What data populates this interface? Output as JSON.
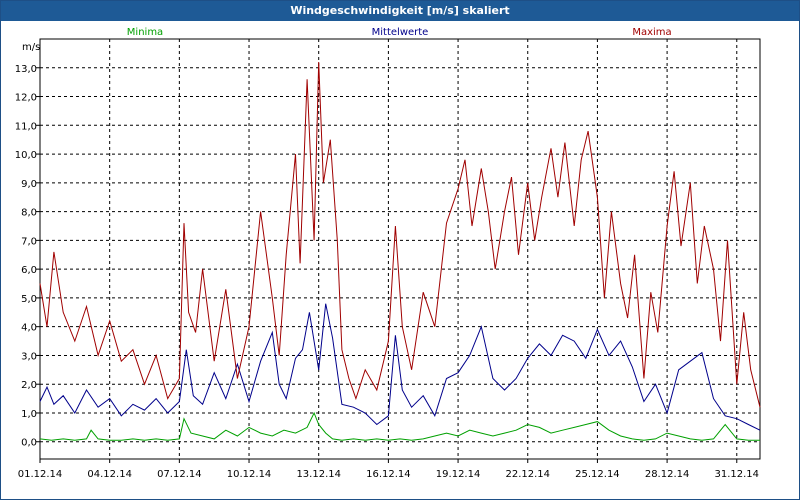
{
  "chart_data": {
    "type": "line",
    "title": "Windgeschwindigkeit [m/s] skaliert",
    "ylabel": "m/s",
    "ylim": [
      -0.6,
      14.0
    ],
    "yticks": [
      0,
      1,
      2,
      3,
      4,
      5,
      6,
      7,
      8,
      9,
      10,
      11,
      12,
      13
    ],
    "ytick_labels": [
      "0,0",
      "1,0",
      "2,0",
      "3,0",
      "4,0",
      "5,0",
      "6,0",
      "7,0",
      "8,0",
      "9,0",
      "10,0",
      "11,0",
      "12,0",
      "13,0"
    ],
    "xlim": [
      0,
      31
    ],
    "xticks": [
      0,
      3,
      6,
      9,
      12,
      15,
      18,
      21,
      24,
      27,
      30
    ],
    "xtick_labels": [
      "01.12.14",
      "04.12.14",
      "07.12.14",
      "10.12.14",
      "13.12.14",
      "16.12.14",
      "19.12.14",
      "22.12.14",
      "25.12.14",
      "28.12.14",
      "31.12.14"
    ],
    "grid": true,
    "series": [
      {
        "name": "Minima",
        "color": "#00a000",
        "x": [
          0,
          0.5,
          1,
          1.5,
          2,
          2.2,
          2.5,
          3,
          3.5,
          4,
          4.5,
          5,
          5.5,
          6,
          6.2,
          6.5,
          7,
          7.5,
          8,
          8.5,
          9,
          9.5,
          10,
          10.5,
          11,
          11.5,
          11.8,
          12,
          12.3,
          12.6,
          13,
          13.5,
          14,
          14.5,
          15,
          15.5,
          16,
          16.5,
          17,
          17.5,
          18,
          18.5,
          19,
          19.5,
          20,
          20.5,
          21,
          21.5,
          22,
          22.5,
          23,
          23.5,
          24,
          24.5,
          25,
          25.5,
          26,
          26.5,
          27,
          27.5,
          28,
          28.5,
          29,
          29.5,
          30,
          30.5,
          31
        ],
        "values": [
          0.1,
          0.05,
          0.1,
          0.05,
          0.1,
          0.4,
          0.1,
          0.05,
          0.05,
          0.1,
          0.05,
          0.1,
          0.05,
          0.1,
          0.8,
          0.3,
          0.2,
          0.1,
          0.4,
          0.2,
          0.5,
          0.3,
          0.2,
          0.4,
          0.3,
          0.5,
          1.0,
          0.6,
          0.3,
          0.1,
          0.05,
          0.1,
          0.05,
          0.1,
          0.05,
          0.1,
          0.05,
          0.1,
          0.2,
          0.3,
          0.2,
          0.4,
          0.3,
          0.2,
          0.3,
          0.4,
          0.6,
          0.5,
          0.3,
          0.4,
          0.5,
          0.6,
          0.7,
          0.4,
          0.2,
          0.1,
          0.05,
          0.1,
          0.3,
          0.2,
          0.1,
          0.05,
          0.1,
          0.6,
          0.1,
          0.05,
          0.05
        ]
      },
      {
        "name": "Mittelwerte",
        "color": "#00008b",
        "x": [
          0,
          0.3,
          0.6,
          1,
          1.5,
          2,
          2.5,
          3,
          3.5,
          4,
          4.5,
          5,
          5.5,
          6,
          6.3,
          6.6,
          7,
          7.5,
          8,
          8.5,
          9,
          9.5,
          10,
          10.3,
          10.6,
          11,
          11.3,
          11.6,
          12,
          12.3,
          12.6,
          13,
          13.5,
          14,
          14.5,
          15,
          15.3,
          15.6,
          16,
          16.5,
          17,
          17.5,
          18,
          18.5,
          19,
          19.5,
          20,
          20.5,
          21,
          21.5,
          22,
          22.5,
          23,
          23.5,
          24,
          24.5,
          25,
          25.5,
          26,
          26.5,
          27,
          27.5,
          28,
          28.5,
          29,
          29.5,
          30,
          30.5,
          31
        ],
        "values": [
          1.4,
          1.9,
          1.3,
          1.6,
          1.0,
          1.8,
          1.2,
          1.5,
          0.9,
          1.3,
          1.1,
          1.5,
          1.0,
          1.4,
          3.2,
          1.6,
          1.3,
          2.4,
          1.5,
          2.7,
          1.4,
          2.8,
          3.8,
          2.0,
          1.5,
          2.9,
          3.2,
          4.5,
          2.5,
          4.8,
          3.6,
          1.3,
          1.2,
          1.0,
          0.6,
          0.9,
          3.7,
          1.8,
          1.2,
          1.6,
          0.9,
          2.2,
          2.4,
          3.0,
          4.0,
          2.2,
          1.8,
          2.2,
          2.9,
          3.4,
          3.0,
          3.7,
          3.5,
          2.9,
          3.9,
          3.0,
          3.5,
          2.6,
          1.4,
          2.0,
          1.0,
          2.5,
          2.8,
          3.1,
          1.5,
          0.9,
          0.8,
          0.6,
          0.4
        ]
      },
      {
        "name": "Maxima",
        "color": "#a00000",
        "x": [
          0,
          0.3,
          0.6,
          1,
          1.5,
          2,
          2.5,
          3,
          3.5,
          4,
          4.5,
          5,
          5.5,
          6,
          6.2,
          6.4,
          6.7,
          7,
          7.5,
          8,
          8.5,
          9,
          9.5,
          10,
          10.3,
          10.6,
          11,
          11.2,
          11.5,
          11.8,
          12,
          12.2,
          12.5,
          12.8,
          13,
          13.3,
          13.6,
          14,
          14.5,
          15,
          15.3,
          15.6,
          16,
          16.5,
          17,
          17.5,
          18,
          18.3,
          18.6,
          19,
          19.3,
          19.6,
          20,
          20.3,
          20.6,
          21,
          21.3,
          21.6,
          22,
          22.3,
          22.6,
          23,
          23.3,
          23.6,
          24,
          24.3,
          24.6,
          25,
          25.3,
          25.6,
          26,
          26.3,
          26.6,
          27,
          27.3,
          27.6,
          28,
          28.3,
          28.6,
          29,
          29.3,
          29.6,
          30,
          30.3,
          30.6,
          31
        ],
        "values": [
          5.5,
          4.0,
          6.6,
          4.5,
          3.5,
          4.7,
          3.0,
          4.2,
          2.8,
          3.2,
          2.0,
          3.0,
          1.5,
          2.2,
          7.6,
          4.5,
          3.8,
          6.0,
          2.8,
          5.3,
          2.2,
          4.0,
          8.0,
          5.0,
          3.0,
          6.5,
          10.0,
          6.2,
          12.6,
          7.0,
          13.2,
          9.0,
          10.5,
          7.0,
          3.2,
          2.2,
          1.5,
          2.5,
          1.8,
          3.5,
          7.5,
          4.0,
          2.5,
          5.2,
          4.0,
          7.6,
          8.8,
          9.8,
          7.5,
          9.5,
          8.0,
          6.0,
          8.0,
          9.2,
          6.5,
          9.0,
          7.0,
          8.5,
          10.2,
          8.5,
          10.4,
          7.5,
          9.8,
          10.8,
          8.5,
          5.0,
          8.0,
          5.5,
          4.3,
          6.5,
          2.2,
          5.2,
          3.8,
          7.5,
          9.4,
          6.8,
          9.0,
          5.5,
          7.5,
          6.0,
          3.5,
          7.0,
          2.0,
          4.5,
          2.5,
          1.2
        ]
      }
    ]
  }
}
